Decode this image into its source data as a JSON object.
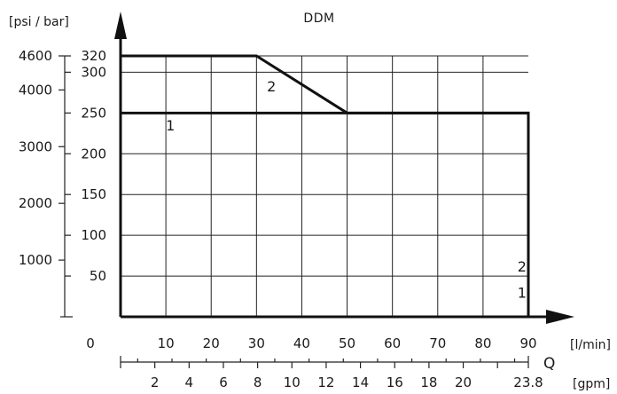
{
  "chart_data": {
    "type": "line",
    "title": "DDM",
    "ylabel": "[psi / bar]",
    "xlabel": "Q",
    "x_unit_lmin": "[l/min]",
    "x_unit_gpm": "[gpm]",
    "xlim": [
      0,
      90
    ],
    "ylim_bar": [
      0,
      320
    ],
    "x_ticks_lmin": [
      {
        "v": 0,
        "label": "0"
      },
      {
        "v": 10,
        "label": "10"
      },
      {
        "v": 20,
        "label": "20"
      },
      {
        "v": 30,
        "label": "30"
      },
      {
        "v": 40,
        "label": "40"
      },
      {
        "v": 50,
        "label": "50"
      },
      {
        "v": 60,
        "label": "60"
      },
      {
        "v": 70,
        "label": "70"
      },
      {
        "v": 80,
        "label": "80"
      },
      {
        "v": 90,
        "label": "90"
      }
    ],
    "x_ticks_gpm": [
      {
        "v": 2,
        "label": "2"
      },
      {
        "v": 4,
        "label": "4"
      },
      {
        "v": 6,
        "label": "6"
      },
      {
        "v": 8,
        "label": "8"
      },
      {
        "v": 10,
        "label": "10"
      },
      {
        "v": 12,
        "label": "12"
      },
      {
        "v": 14,
        "label": "14"
      },
      {
        "v": 16,
        "label": "16"
      },
      {
        "v": 18,
        "label": "18"
      },
      {
        "v": 20,
        "label": "20"
      },
      {
        "v": 23.8,
        "label": "23.8"
      }
    ],
    "y_ticks_bar": [
      {
        "v": 50,
        "label": "50"
      },
      {
        "v": 100,
        "label": "100"
      },
      {
        "v": 150,
        "label": "150"
      },
      {
        "v": 200,
        "label": "200"
      },
      {
        "v": 250,
        "label": "250"
      },
      {
        "v": 300,
        "label": "300"
      },
      {
        "v": 320,
        "label": "320"
      }
    ],
    "y_ticks_psi": [
      {
        "v": 1000,
        "label": "1000"
      },
      {
        "v": 2000,
        "label": "2000"
      },
      {
        "v": 3000,
        "label": "3000"
      },
      {
        "v": 4000,
        "label": "4000"
      },
      {
        "v": 4600,
        "label": "4600"
      }
    ],
    "grid": true,
    "series": [
      {
        "name": "1",
        "x": [
          0,
          90,
          90
        ],
        "y": [
          250,
          250,
          0
        ],
        "label_points": [
          {
            "x": 11,
            "y": 235
          },
          {
            "x": 88.6,
            "y": 30
          }
        ]
      },
      {
        "name": "2",
        "x": [
          0,
          30,
          50,
          90,
          90
        ],
        "y": [
          320,
          320,
          250,
          250,
          0
        ],
        "label_points": [
          {
            "x": 33.3,
            "y": 283
          },
          {
            "x": 88.6,
            "y": 62
          }
        ]
      }
    ]
  }
}
